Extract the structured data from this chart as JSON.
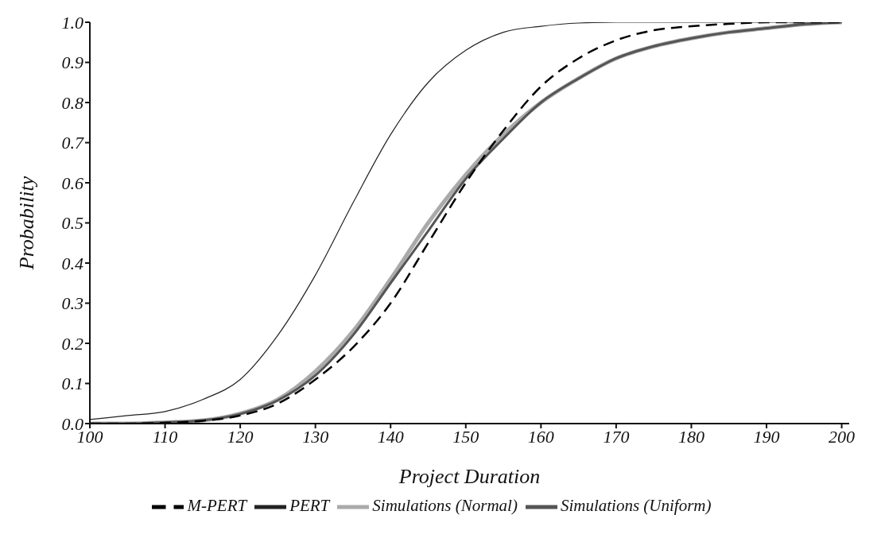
{
  "chart_data": {
    "type": "line",
    "xlabel": "Project Duration",
    "ylabel": "Probability",
    "x": [
      100,
      105,
      110,
      115,
      120,
      125,
      130,
      135,
      140,
      145,
      150,
      155,
      160,
      165,
      170,
      175,
      180,
      185,
      190,
      195,
      200
    ],
    "xlim": [
      100,
      201
    ],
    "xticks": [
      100,
      110,
      120,
      130,
      140,
      150,
      160,
      170,
      180,
      190,
      200
    ],
    "ylim": [
      0,
      1
    ],
    "yticks": [
      {
        "value": 0,
        "label": "0.0"
      },
      0.1,
      0.2,
      0.3,
      0.4,
      0.5,
      0.6,
      0.7,
      0.8,
      0.9,
      {
        "value": 1,
        "label": "1.0"
      }
    ],
    "grid": false,
    "legend": "bottom",
    "marker": "none",
    "series": [
      {
        "name": "Simulations (Normal)",
        "color": "#aaaaaa",
        "line_style": "solid",
        "values": [
          0,
          0,
          0.003,
          0.008,
          0.025,
          0.06,
          0.13,
          0.23,
          0.36,
          0.5,
          0.62,
          0.72,
          0.8,
          0.86,
          0.91,
          0.94,
          0.96,
          0.975,
          0.985,
          0.995,
          1
        ]
      },
      {
        "name": "Simulations (Uniform)",
        "color": "#555555",
        "line_style": "solid",
        "values": [
          0,
          0,
          0.003,
          0.008,
          0.024,
          0.058,
          0.12,
          0.22,
          0.35,
          0.48,
          0.61,
          0.71,
          0.8,
          0.86,
          0.91,
          0.94,
          0.96,
          0.975,
          0.985,
          0.995,
          1
        ]
      },
      {
        "name": "PERT",
        "color": "#222222",
        "line_style": "solid",
        "values": [
          0.01,
          0.02,
          0.03,
          0.06,
          0.11,
          0.22,
          0.37,
          0.55,
          0.72,
          0.85,
          0.93,
          0.975,
          0.99,
          0.998,
          1,
          1,
          1,
          1,
          1,
          1,
          1
        ]
      },
      {
        "name": "M-PERT",
        "color": "#000000",
        "line_style": "dashed",
        "values": [
          0,
          0,
          0.002,
          0.007,
          0.02,
          0.05,
          0.11,
          0.19,
          0.3,
          0.45,
          0.6,
          0.73,
          0.84,
          0.91,
          0.955,
          0.98,
          0.99,
          0.996,
          1,
          1,
          1
        ]
      }
    ]
  }
}
